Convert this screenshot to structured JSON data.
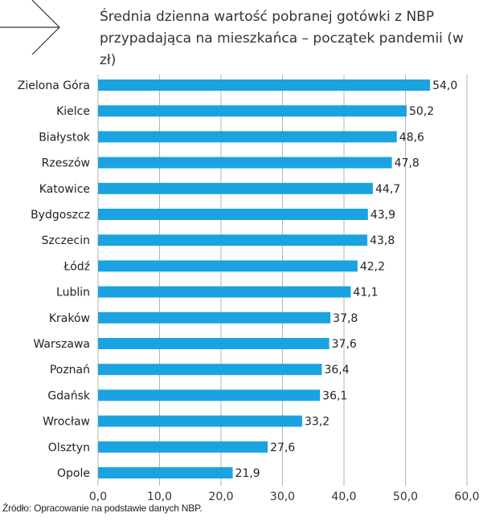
{
  "chart_data": {
    "type": "bar",
    "orientation": "horizontal",
    "title": "Średnia dzienna wartość pobranej gotówki z NBP przypadająca na mieszkańca – początek pandemii (w zł)",
    "categories": [
      "Zielona Góra",
      "Kielce",
      "Białystok",
      "Rzeszów",
      "Katowice",
      "Bydgoszcz",
      "Szczecin",
      "Łódź",
      "Lublin",
      "Kraków",
      "Warszawa",
      "Poznań",
      "Gdańsk",
      "Wrocław",
      "Olsztyn",
      "Opole"
    ],
    "values": [
      54.0,
      50.2,
      48.6,
      47.8,
      44.7,
      43.9,
      43.8,
      42.2,
      41.1,
      37.8,
      37.6,
      36.4,
      36.1,
      33.2,
      27.6,
      21.9
    ],
    "value_labels": [
      "54,0",
      "50,2",
      "48,6",
      "47,8",
      "44,7",
      "43,9",
      "43,8",
      "42,2",
      "41,1",
      "37,8",
      "37,6",
      "36,4",
      "36,1",
      "33,2",
      "27,6",
      "21,9"
    ],
    "xlim": [
      0,
      60
    ],
    "xticks": [
      0,
      10,
      20,
      30,
      40,
      50,
      60
    ],
    "xtick_labels": [
      "0,0",
      "10,0",
      "20,0",
      "30,0",
      "40,0",
      "50,0",
      "60,0"
    ],
    "xlabel": "",
    "ylabel": "",
    "grid": true,
    "legend": "none",
    "bar_color": "#1aa3e0",
    "grid_color": "#b3b3b3"
  },
  "source_note": "Źródło: Opracowanie na podstawie danych NBP.",
  "decoration": {
    "icon": "arrow-right-icon"
  }
}
